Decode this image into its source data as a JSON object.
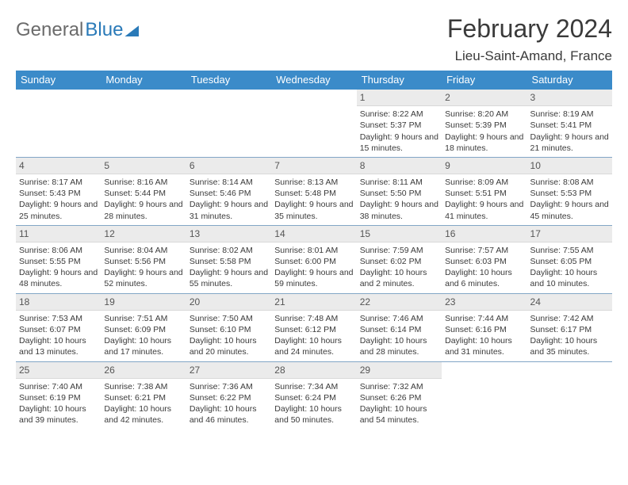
{
  "logo": {
    "text1": "General",
    "text2": "Blue",
    "color_gray": "#6b6b6b",
    "color_blue": "#2a7ab8"
  },
  "title": "February 2024",
  "location": "Lieu-Saint-Amand, France",
  "colors": {
    "header_bg": "#3b8bc9",
    "header_text": "#ffffff",
    "daynum_bg": "#ebebeb",
    "sep": "#2f6aa0",
    "body_text": "#3a3a3a"
  },
  "weekdays": [
    "Sunday",
    "Monday",
    "Tuesday",
    "Wednesday",
    "Thursday",
    "Friday",
    "Saturday"
  ],
  "weeks": [
    [
      {
        "n": "",
        "t": ""
      },
      {
        "n": "",
        "t": ""
      },
      {
        "n": "",
        "t": ""
      },
      {
        "n": "",
        "t": ""
      },
      {
        "n": "1",
        "t": "Sunrise: 8:22 AM\nSunset: 5:37 PM\nDaylight: 9 hours and 15 minutes."
      },
      {
        "n": "2",
        "t": "Sunrise: 8:20 AM\nSunset: 5:39 PM\nDaylight: 9 hours and 18 minutes."
      },
      {
        "n": "3",
        "t": "Sunrise: 8:19 AM\nSunset: 5:41 PM\nDaylight: 9 hours and 21 minutes."
      }
    ],
    [
      {
        "n": "4",
        "t": "Sunrise: 8:17 AM\nSunset: 5:43 PM\nDaylight: 9 hours and 25 minutes."
      },
      {
        "n": "5",
        "t": "Sunrise: 8:16 AM\nSunset: 5:44 PM\nDaylight: 9 hours and 28 minutes."
      },
      {
        "n": "6",
        "t": "Sunrise: 8:14 AM\nSunset: 5:46 PM\nDaylight: 9 hours and 31 minutes."
      },
      {
        "n": "7",
        "t": "Sunrise: 8:13 AM\nSunset: 5:48 PM\nDaylight: 9 hours and 35 minutes."
      },
      {
        "n": "8",
        "t": "Sunrise: 8:11 AM\nSunset: 5:50 PM\nDaylight: 9 hours and 38 minutes."
      },
      {
        "n": "9",
        "t": "Sunrise: 8:09 AM\nSunset: 5:51 PM\nDaylight: 9 hours and 41 minutes."
      },
      {
        "n": "10",
        "t": "Sunrise: 8:08 AM\nSunset: 5:53 PM\nDaylight: 9 hours and 45 minutes."
      }
    ],
    [
      {
        "n": "11",
        "t": "Sunrise: 8:06 AM\nSunset: 5:55 PM\nDaylight: 9 hours and 48 minutes."
      },
      {
        "n": "12",
        "t": "Sunrise: 8:04 AM\nSunset: 5:56 PM\nDaylight: 9 hours and 52 minutes."
      },
      {
        "n": "13",
        "t": "Sunrise: 8:02 AM\nSunset: 5:58 PM\nDaylight: 9 hours and 55 minutes."
      },
      {
        "n": "14",
        "t": "Sunrise: 8:01 AM\nSunset: 6:00 PM\nDaylight: 9 hours and 59 minutes."
      },
      {
        "n": "15",
        "t": "Sunrise: 7:59 AM\nSunset: 6:02 PM\nDaylight: 10 hours and 2 minutes."
      },
      {
        "n": "16",
        "t": "Sunrise: 7:57 AM\nSunset: 6:03 PM\nDaylight: 10 hours and 6 minutes."
      },
      {
        "n": "17",
        "t": "Sunrise: 7:55 AM\nSunset: 6:05 PM\nDaylight: 10 hours and 10 minutes."
      }
    ],
    [
      {
        "n": "18",
        "t": "Sunrise: 7:53 AM\nSunset: 6:07 PM\nDaylight: 10 hours and 13 minutes."
      },
      {
        "n": "19",
        "t": "Sunrise: 7:51 AM\nSunset: 6:09 PM\nDaylight: 10 hours and 17 minutes."
      },
      {
        "n": "20",
        "t": "Sunrise: 7:50 AM\nSunset: 6:10 PM\nDaylight: 10 hours and 20 minutes."
      },
      {
        "n": "21",
        "t": "Sunrise: 7:48 AM\nSunset: 6:12 PM\nDaylight: 10 hours and 24 minutes."
      },
      {
        "n": "22",
        "t": "Sunrise: 7:46 AM\nSunset: 6:14 PM\nDaylight: 10 hours and 28 minutes."
      },
      {
        "n": "23",
        "t": "Sunrise: 7:44 AM\nSunset: 6:16 PM\nDaylight: 10 hours and 31 minutes."
      },
      {
        "n": "24",
        "t": "Sunrise: 7:42 AM\nSunset: 6:17 PM\nDaylight: 10 hours and 35 minutes."
      }
    ],
    [
      {
        "n": "25",
        "t": "Sunrise: 7:40 AM\nSunset: 6:19 PM\nDaylight: 10 hours and 39 minutes."
      },
      {
        "n": "26",
        "t": "Sunrise: 7:38 AM\nSunset: 6:21 PM\nDaylight: 10 hours and 42 minutes."
      },
      {
        "n": "27",
        "t": "Sunrise: 7:36 AM\nSunset: 6:22 PM\nDaylight: 10 hours and 46 minutes."
      },
      {
        "n": "28",
        "t": "Sunrise: 7:34 AM\nSunset: 6:24 PM\nDaylight: 10 hours and 50 minutes."
      },
      {
        "n": "29",
        "t": "Sunrise: 7:32 AM\nSunset: 6:26 PM\nDaylight: 10 hours and 54 minutes."
      },
      {
        "n": "",
        "t": ""
      },
      {
        "n": "",
        "t": ""
      }
    ]
  ]
}
